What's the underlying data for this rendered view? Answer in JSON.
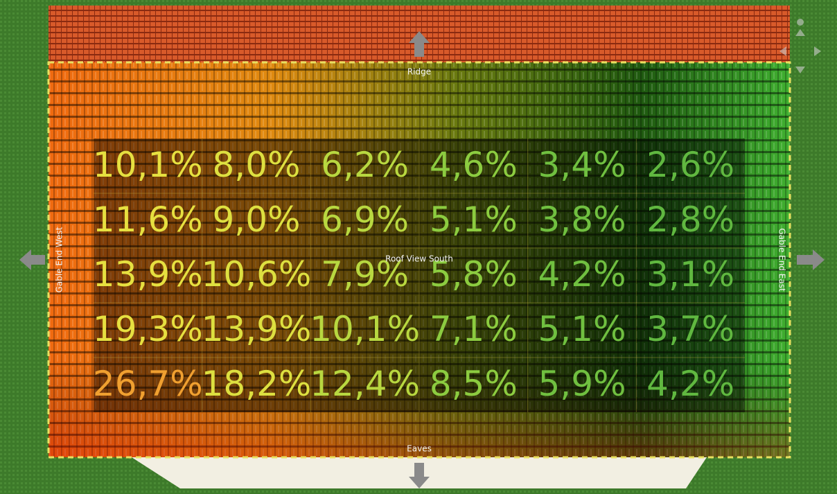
{
  "labels": {
    "top": "Ridge",
    "bottom": "Eaves",
    "left": "Gable End West",
    "right": "Gable End East",
    "center": "Roof View South"
  },
  "grid": {
    "rows": [
      [
        "10,1%",
        "8,0%",
        "6,2%",
        "4,6%",
        "3,4%",
        "2,6%"
      ],
      [
        "11,6%",
        "9,0%",
        "6,9%",
        "5,1%",
        "3,8%",
        "2,8%"
      ],
      [
        "13,9%",
        "10,6%",
        "7,9%",
        "5,8%",
        "4,2%",
        "3,1%"
      ],
      [
        "19,3%",
        "13,9%",
        "10,1%",
        "7,1%",
        "5,1%",
        "3,7%"
      ],
      [
        "26,7%",
        "18,2%",
        "12,4%",
        "8,5%",
        "5,9%",
        "4,2%"
      ]
    ]
  }
}
